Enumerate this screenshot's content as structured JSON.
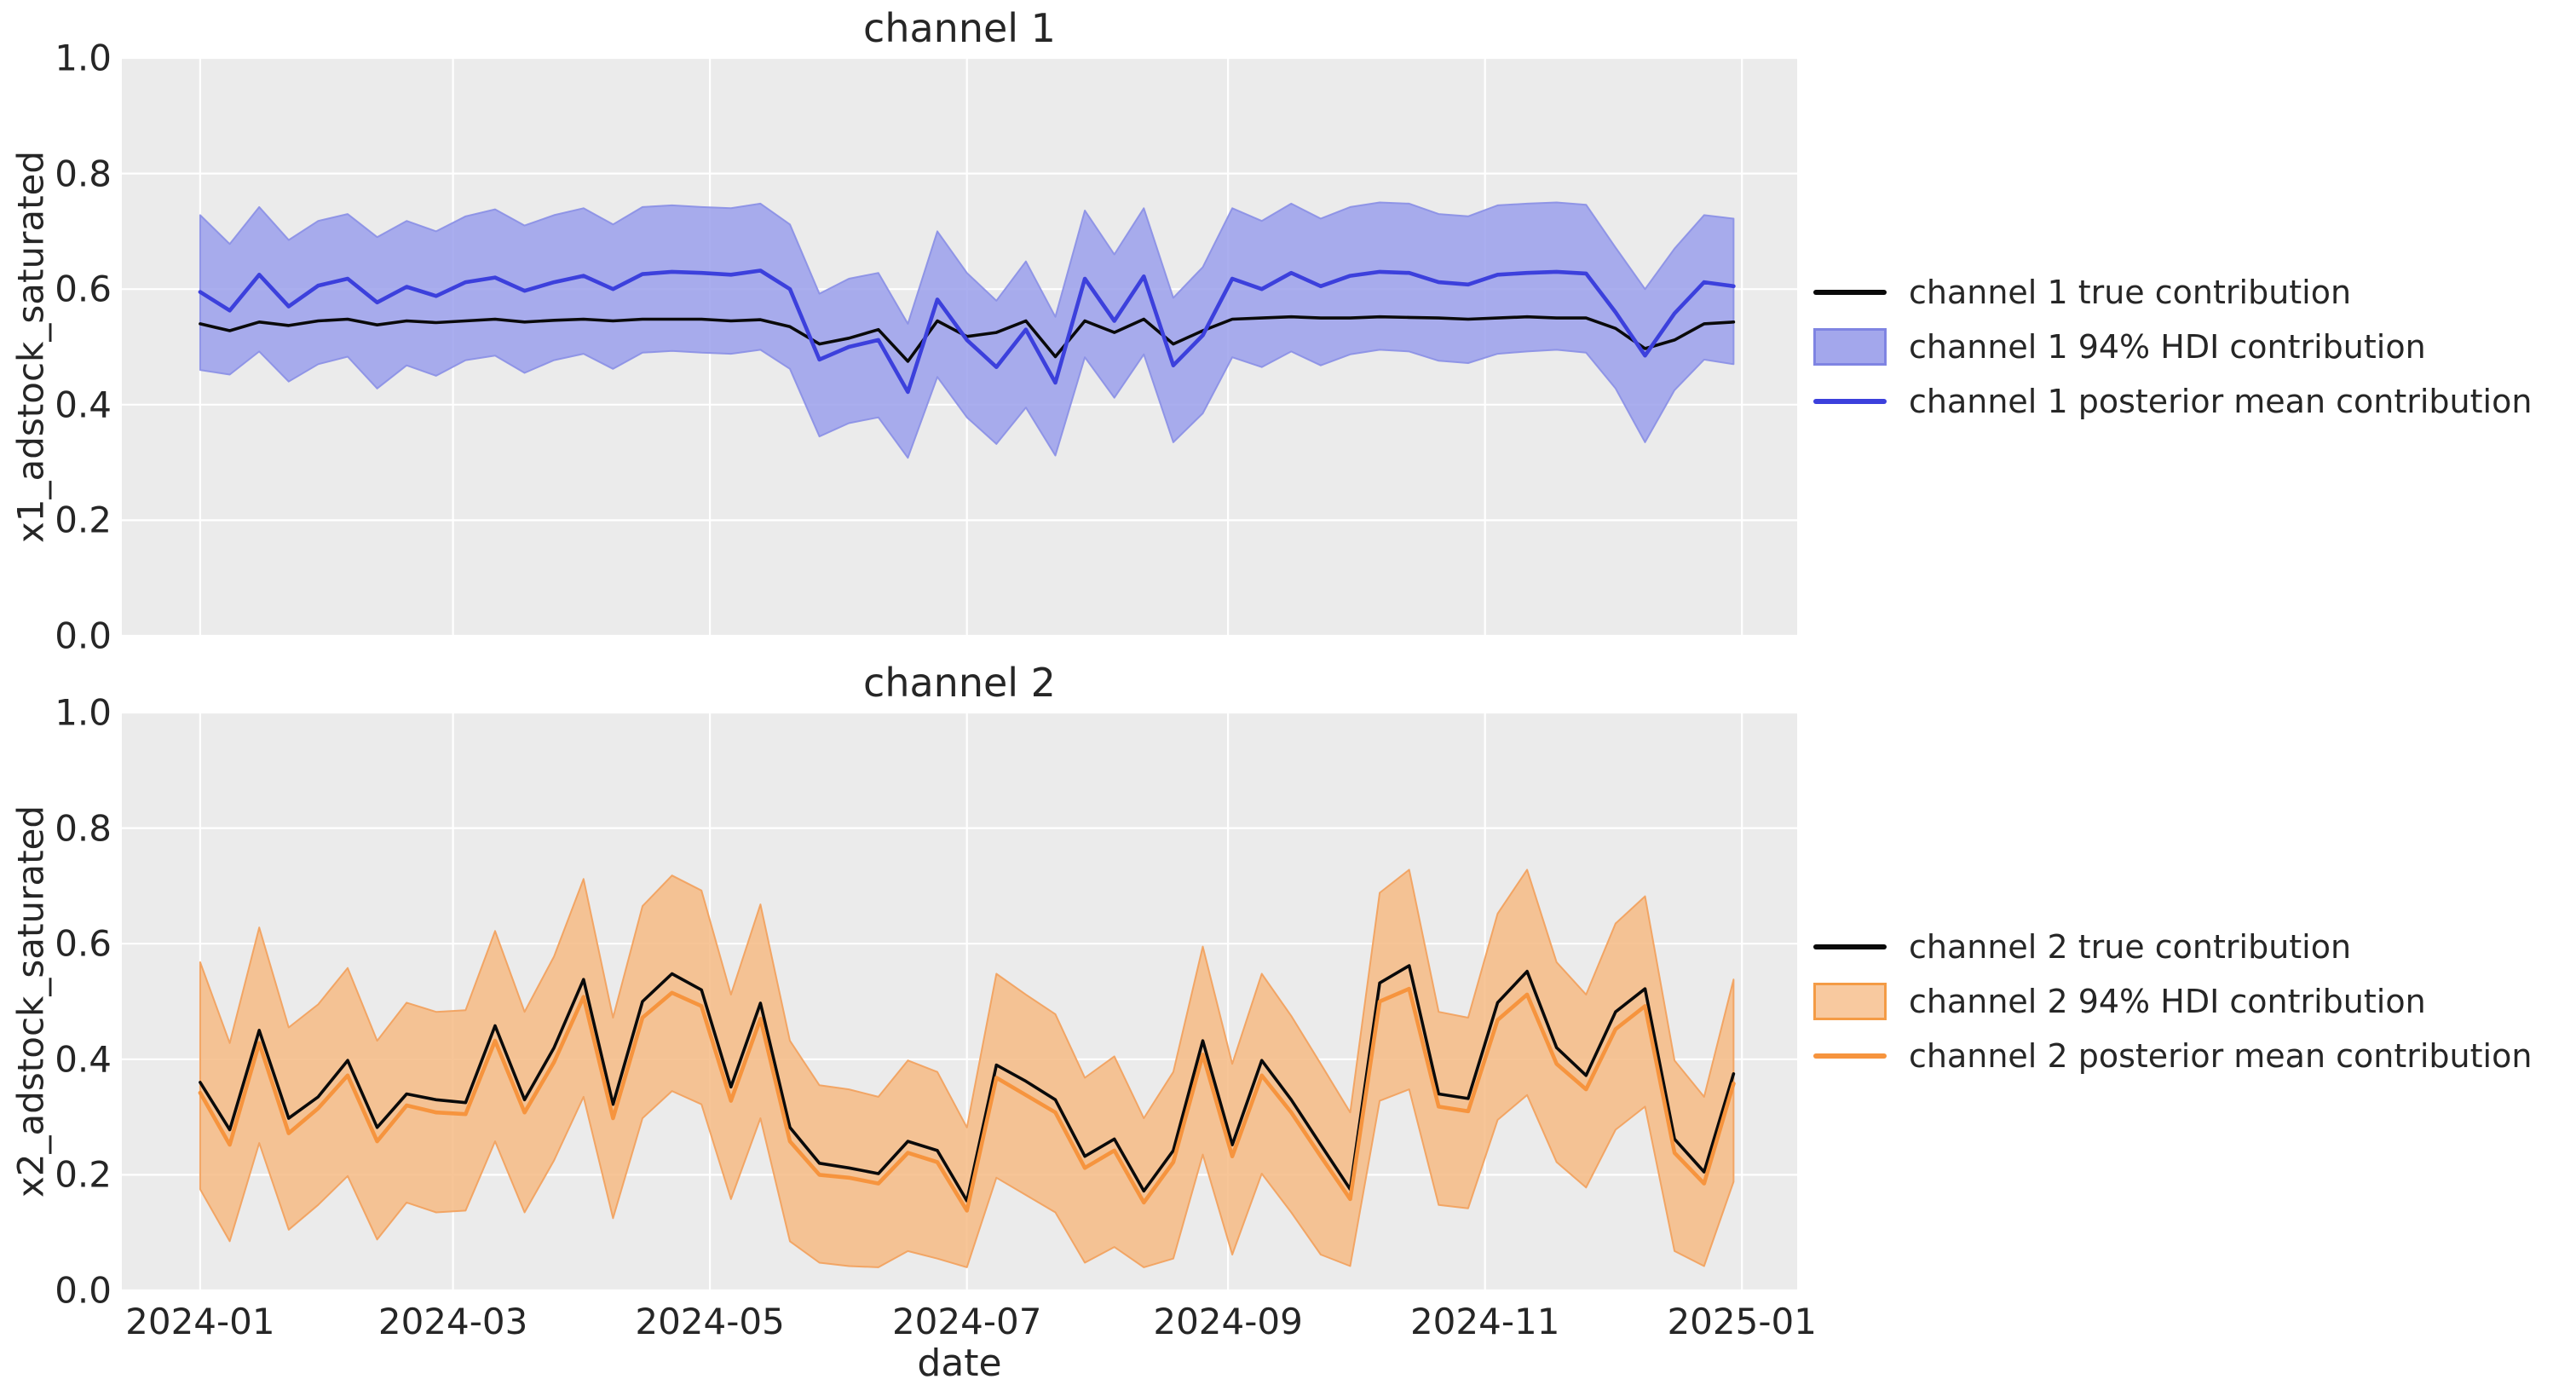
{
  "figure": {
    "background": "#ffffff",
    "axes_background": "#ebebeb",
    "grid_color": "#ffffff",
    "text_color": "#262626"
  },
  "axis": {
    "xlabel": "date",
    "x_tick_labels": [
      "2024-01",
      "2024-03",
      "2024-05",
      "2024-07",
      "2024-09",
      "2024-11",
      "2025-01"
    ],
    "x_tick_days": [
      0,
      60,
      121,
      182,
      244,
      305,
      366
    ],
    "x_range_days": [
      -18.6,
      379.1
    ],
    "y_tick_labels": [
      "0.0",
      "0.2",
      "0.4",
      "0.6",
      "0.8",
      "1.0"
    ],
    "y_tick_values": [
      0,
      0.2,
      0.4,
      0.6,
      0.8,
      1.0
    ],
    "ylim": [
      0,
      1
    ],
    "grid": true
  },
  "chart_data": [
    {
      "type": "line",
      "title": "channel 1",
      "ylabel": "x1_adstock_saturated",
      "xlabel": "",
      "ylim": [
        0,
        1
      ],
      "x_days": [
        0,
        7,
        14,
        21,
        28,
        35,
        42,
        49,
        56,
        63,
        70,
        77,
        84,
        91,
        98,
        105,
        112,
        119,
        126,
        133,
        140,
        147,
        154,
        161,
        168,
        175,
        182,
        189,
        196,
        203,
        210,
        217,
        224,
        231,
        238,
        245,
        252,
        259,
        266,
        273,
        280,
        287,
        294,
        301,
        308,
        315,
        322,
        329,
        336,
        343,
        350,
        357,
        364
      ],
      "series": [
        {
          "name": "channel 1 true contribution",
          "kind": "line",
          "color": "#0a0a0a",
          "line_width": 3.6,
          "values": [
            0.54,
            0.528,
            0.543,
            0.537,
            0.545,
            0.548,
            0.538,
            0.545,
            0.542,
            0.545,
            0.548,
            0.543,
            0.546,
            0.548,
            0.545,
            0.548,
            0.548,
            0.548,
            0.545,
            0.547,
            0.535,
            0.505,
            0.515,
            0.53,
            0.475,
            0.545,
            0.518,
            0.525,
            0.545,
            0.483,
            0.545,
            0.525,
            0.548,
            0.505,
            0.528,
            0.548,
            0.55,
            0.552,
            0.55,
            0.55,
            0.552,
            0.551,
            0.55,
            0.548,
            0.55,
            0.552,
            0.55,
            0.55,
            0.532,
            0.497,
            0.512,
            0.54,
            0.543
          ]
        },
        {
          "name": "channel 1 94% HDI contribution",
          "kind": "band",
          "fill": "#979cec",
          "fill_opacity": 0.82,
          "edge": "#8a8fe5",
          "lower": [
            0.46,
            0.452,
            0.492,
            0.44,
            0.47,
            0.483,
            0.428,
            0.468,
            0.45,
            0.477,
            0.485,
            0.455,
            0.477,
            0.488,
            0.462,
            0.49,
            0.493,
            0.49,
            0.488,
            0.495,
            0.462,
            0.345,
            0.368,
            0.378,
            0.308,
            0.448,
            0.378,
            0.332,
            0.395,
            0.312,
            0.482,
            0.412,
            0.487,
            0.335,
            0.385,
            0.482,
            0.465,
            0.492,
            0.468,
            0.487,
            0.495,
            0.492,
            0.476,
            0.472,
            0.488,
            0.492,
            0.495,
            0.49,
            0.428,
            0.335,
            0.425,
            0.478,
            0.47
          ],
          "upper": [
            0.728,
            0.678,
            0.742,
            0.685,
            0.718,
            0.73,
            0.69,
            0.718,
            0.7,
            0.726,
            0.738,
            0.71,
            0.728,
            0.74,
            0.712,
            0.742,
            0.745,
            0.742,
            0.74,
            0.748,
            0.712,
            0.592,
            0.618,
            0.628,
            0.54,
            0.7,
            0.628,
            0.58,
            0.648,
            0.552,
            0.736,
            0.66,
            0.74,
            0.585,
            0.638,
            0.74,
            0.718,
            0.748,
            0.722,
            0.742,
            0.75,
            0.748,
            0.73,
            0.726,
            0.745,
            0.748,
            0.75,
            0.746,
            0.672,
            0.6,
            0.67,
            0.728,
            0.722
          ]
        },
        {
          "name": "channel 1 posterior mean contribution",
          "kind": "line",
          "color": "#3c40dc",
          "line_width": 4.6,
          "values": [
            0.595,
            0.563,
            0.625,
            0.57,
            0.606,
            0.618,
            0.577,
            0.604,
            0.588,
            0.612,
            0.62,
            0.597,
            0.612,
            0.623,
            0.6,
            0.626,
            0.63,
            0.628,
            0.625,
            0.632,
            0.6,
            0.478,
            0.5,
            0.512,
            0.422,
            0.582,
            0.512,
            0.465,
            0.53,
            0.438,
            0.618,
            0.545,
            0.622,
            0.468,
            0.52,
            0.618,
            0.6,
            0.628,
            0.605,
            0.623,
            0.63,
            0.628,
            0.612,
            0.608,
            0.625,
            0.628,
            0.63,
            0.627,
            0.56,
            0.485,
            0.558,
            0.612,
            0.605
          ]
        }
      ],
      "legend": [
        {
          "label": "channel 1 true contribution",
          "swatch": "line",
          "color": "#0a0a0a"
        },
        {
          "label": "channel 1 94% HDI contribution",
          "swatch": "patch",
          "fill": "#a3a7ec",
          "edge": "#7f84e2"
        },
        {
          "label": "channel 1 posterior mean contribution",
          "swatch": "line",
          "color": "#3c40dc"
        }
      ]
    },
    {
      "type": "line",
      "title": "channel 2",
      "ylabel": "x2_adstock_saturated",
      "xlabel": "date",
      "ylim": [
        0,
        1
      ],
      "x_days": [
        0,
        7,
        14,
        21,
        28,
        35,
        42,
        49,
        56,
        63,
        70,
        77,
        84,
        91,
        98,
        105,
        112,
        119,
        126,
        133,
        140,
        147,
        154,
        161,
        168,
        175,
        182,
        189,
        196,
        203,
        210,
        217,
        224,
        231,
        238,
        245,
        252,
        259,
        266,
        273,
        280,
        287,
        294,
        301,
        308,
        315,
        322,
        329,
        336,
        343,
        350,
        357,
        364
      ],
      "series": [
        {
          "name": "channel 2 true contribution",
          "kind": "line",
          "color": "#0a0a0a",
          "line_width": 3.6,
          "values": [
            0.36,
            0.278,
            0.45,
            0.298,
            0.335,
            0.398,
            0.282,
            0.34,
            0.33,
            0.325,
            0.458,
            0.33,
            0.42,
            0.538,
            0.322,
            0.5,
            0.548,
            0.52,
            0.352,
            0.497,
            0.282,
            0.22,
            0.212,
            0.202,
            0.258,
            0.242,
            0.155,
            0.39,
            0.362,
            0.33,
            0.232,
            0.262,
            0.172,
            0.242,
            0.432,
            0.252,
            0.398,
            0.33,
            0.252,
            0.175,
            0.532,
            0.562,
            0.34,
            0.332,
            0.498,
            0.552,
            0.42,
            0.372,
            0.482,
            0.522,
            0.262,
            0.205,
            0.375
          ]
        },
        {
          "name": "channel 2 94% HDI contribution",
          "kind": "band",
          "fill": "#f5b880",
          "fill_opacity": 0.82,
          "edge": "#f2a05b",
          "lower": [
            0.175,
            0.085,
            0.255,
            0.105,
            0.148,
            0.198,
            0.088,
            0.152,
            0.135,
            0.138,
            0.258,
            0.135,
            0.225,
            0.335,
            0.125,
            0.298,
            0.345,
            0.322,
            0.158,
            0.298,
            0.085,
            0.048,
            0.042,
            0.04,
            0.068,
            0.055,
            0.04,
            0.195,
            0.165,
            0.135,
            0.048,
            0.075,
            0.04,
            0.055,
            0.235,
            0.062,
            0.202,
            0.135,
            0.062,
            0.042,
            0.328,
            0.348,
            0.148,
            0.142,
            0.295,
            0.338,
            0.222,
            0.178,
            0.278,
            0.318,
            0.068,
            0.042,
            0.188
          ],
          "upper": [
            0.568,
            0.428,
            0.628,
            0.455,
            0.495,
            0.558,
            0.432,
            0.498,
            0.482,
            0.485,
            0.622,
            0.482,
            0.578,
            0.712,
            0.472,
            0.665,
            0.718,
            0.692,
            0.512,
            0.668,
            0.432,
            0.355,
            0.348,
            0.335,
            0.398,
            0.378,
            0.282,
            0.548,
            0.512,
            0.478,
            0.368,
            0.405,
            0.298,
            0.378,
            0.595,
            0.392,
            0.548,
            0.475,
            0.392,
            0.308,
            0.688,
            0.728,
            0.482,
            0.472,
            0.652,
            0.728,
            0.568,
            0.512,
            0.635,
            0.682,
            0.398,
            0.335,
            0.538
          ]
        },
        {
          "name": "channel 2 posterior mean contribution",
          "kind": "line",
          "color": "#f6943e",
          "line_width": 4.6,
          "values": [
            0.342,
            0.252,
            0.428,
            0.272,
            0.315,
            0.372,
            0.258,
            0.32,
            0.308,
            0.305,
            0.432,
            0.308,
            0.395,
            0.508,
            0.298,
            0.472,
            0.515,
            0.492,
            0.328,
            0.47,
            0.258,
            0.2,
            0.195,
            0.185,
            0.238,
            0.222,
            0.138,
            0.368,
            0.338,
            0.308,
            0.212,
            0.242,
            0.152,
            0.222,
            0.408,
            0.232,
            0.372,
            0.308,
            0.232,
            0.158,
            0.5,
            0.522,
            0.318,
            0.31,
            0.468,
            0.512,
            0.392,
            0.348,
            0.452,
            0.492,
            0.238,
            0.185,
            0.358
          ]
        }
      ],
      "legend": [
        {
          "label": "channel 2 true contribution",
          "swatch": "line",
          "color": "#0a0a0a"
        },
        {
          "label": "channel 2 94% HDI contribution",
          "swatch": "patch",
          "fill": "#f8c99f",
          "edge": "#f49b45"
        },
        {
          "label": "channel 2 posterior mean contribution",
          "swatch": "line",
          "color": "#f6943e"
        }
      ]
    }
  ]
}
